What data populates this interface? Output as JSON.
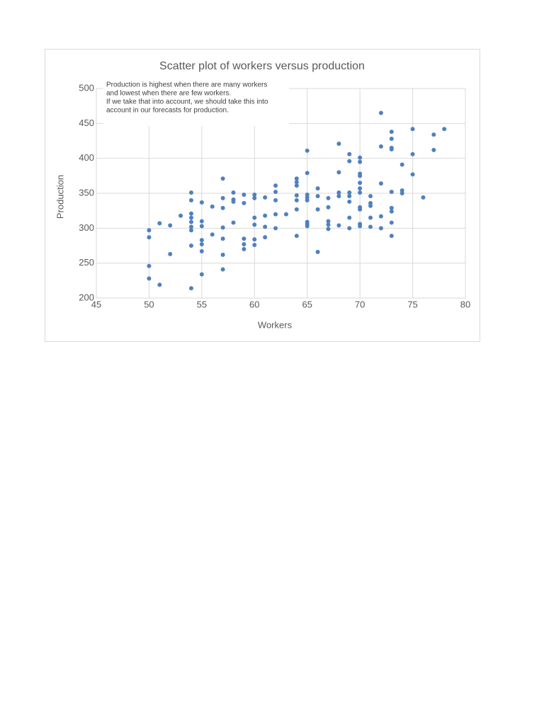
{
  "chart_data": {
    "type": "scatter",
    "title": "Scatter plot of workers versus production",
    "annotation": [
      "Production is highest when there are many workers",
      "and lowest when there are few workers.",
      "If we take that into account, we should take this into",
      "account in our forecasts for production."
    ],
    "x_label": "Workers",
    "y_label": "Production",
    "color": "#4f81bd",
    "grid": true,
    "xlim": [
      45,
      80
    ],
    "xticks": [
      45,
      50,
      55,
      60,
      65,
      70,
      75,
      80
    ],
    "ylim": [
      200,
      500
    ],
    "yticks": [
      200,
      250,
      300,
      350,
      400,
      450,
      500
    ],
    "x": [
      50,
      50,
      50,
      50,
      51,
      51,
      52,
      52,
      53,
      54,
      54,
      54,
      54,
      54,
      54,
      54,
      54,
      54,
      55,
      55,
      55,
      55,
      55,
      55,
      55,
      56,
      56,
      57,
      57,
      57,
      57,
      57,
      57,
      57,
      58,
      58,
      58,
      58,
      59,
      59,
      59,
      59,
      59,
      60,
      60,
      60,
      60,
      60,
      60,
      61,
      61,
      61,
      61,
      62,
      62,
      62,
      62,
      62,
      63,
      64,
      64,
      64,
      64,
      64,
      64,
      64,
      65,
      65,
      65,
      65,
      65,
      65,
      65,
      65,
      66,
      66,
      66,
      66,
      67,
      67,
      67,
      67,
      67,
      68,
      68,
      68,
      68,
      68,
      69,
      69,
      69,
      69,
      69,
      69,
      69,
      70,
      70,
      70,
      70,
      70,
      70,
      70,
      70,
      70,
      70,
      70,
      71,
      71,
      71,
      71,
      71,
      72,
      72,
      72,
      72,
      72,
      73,
      73,
      73,
      73,
      73,
      73,
      73,
      73,
      73,
      74,
      74,
      74,
      75,
      75,
      75,
      76,
      77,
      77,
      78
    ],
    "y": [
      297,
      287,
      246,
      228,
      307,
      219,
      304,
      263,
      318,
      351,
      340,
      321,
      315,
      309,
      302,
      297,
      275,
      214,
      337,
      310,
      303,
      283,
      277,
      267,
      234,
      331,
      291,
      371,
      343,
      329,
      301,
      285,
      262,
      241,
      351,
      341,
      338,
      308,
      348,
      336,
      285,
      277,
      270,
      348,
      343,
      315,
      305,
      284,
      276,
      344,
      318,
      302,
      287,
      361,
      352,
      340,
      320,
      300,
      320,
      371,
      366,
      361,
      347,
      340,
      327,
      289,
      411,
      379,
      348,
      344,
      340,
      309,
      306,
      303,
      357,
      346,
      327,
      266,
      343,
      330,
      310,
      305,
      299,
      421,
      380,
      351,
      346,
      304,
      406,
      396,
      351,
      346,
      338,
      315,
      300,
      401,
      395,
      378,
      375,
      365,
      357,
      351,
      330,
      327,
      306,
      303,
      346,
      336,
      332,
      315,
      302,
      465,
      417,
      364,
      317,
      300,
      438,
      428,
      415,
      413,
      352,
      329,
      324,
      308,
      289,
      391,
      354,
      350,
      442,
      406,
      377,
      344,
      434,
      412,
      442
    ]
  }
}
